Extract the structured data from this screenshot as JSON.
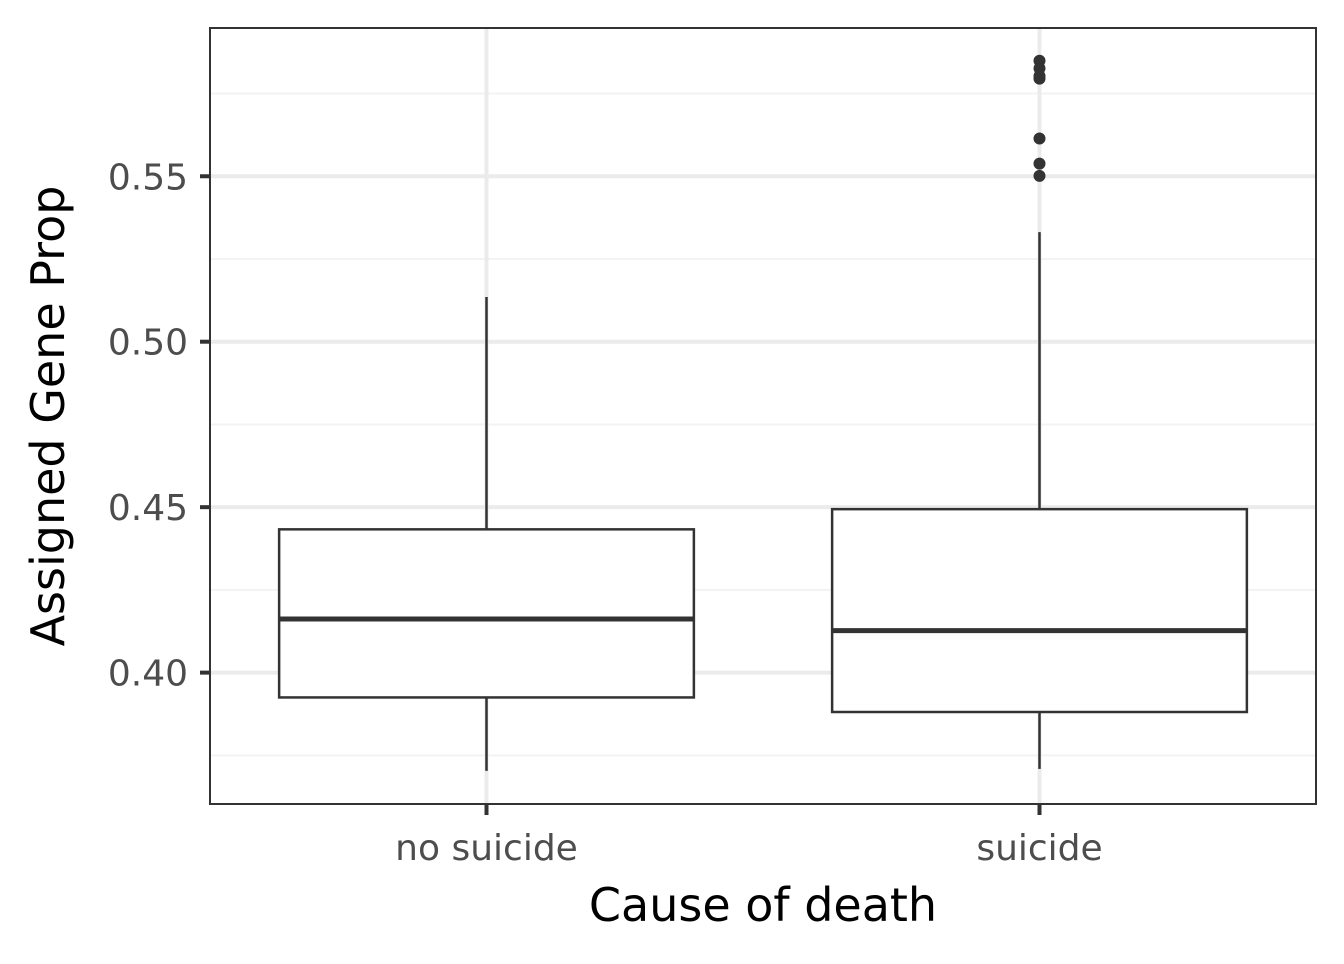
{
  "chart_data": {
    "type": "boxplot",
    "xlabel": "Cause of death",
    "ylabel": "Assigned Gene Prop",
    "ylim": [
      0.3603,
      0.5948
    ],
    "yticks": [
      0.4,
      0.45,
      0.5,
      0.55
    ],
    "ytick_labels": [
      "0.40",
      "0.45",
      "0.50",
      "0.55"
    ],
    "categories": [
      "no suicide",
      "suicide"
    ],
    "grid": true,
    "boxes": [
      {
        "category": "no suicide",
        "whisker_low": 0.3703,
        "q1": 0.3925,
        "median": 0.4162,
        "q3": 0.4433,
        "whisker_high": 0.5135,
        "outliers": []
      },
      {
        "category": "suicide",
        "whisker_low": 0.3709,
        "q1": 0.3881,
        "median": 0.4127,
        "q3": 0.4494,
        "whisker_high": 0.5331,
        "outliers": [
          0.5501,
          0.5538,
          0.5614,
          0.5795,
          0.5803,
          0.5826,
          0.5849
        ]
      }
    ],
    "colors": {
      "box_stroke": "#333333",
      "box_fill": "#ffffff",
      "grid_major": "#ebebeb",
      "grid_minor": "#f3f3f3",
      "panel_border": "#333333",
      "tick_label": "#4d4d4d",
      "axis_title": "#000000"
    }
  }
}
